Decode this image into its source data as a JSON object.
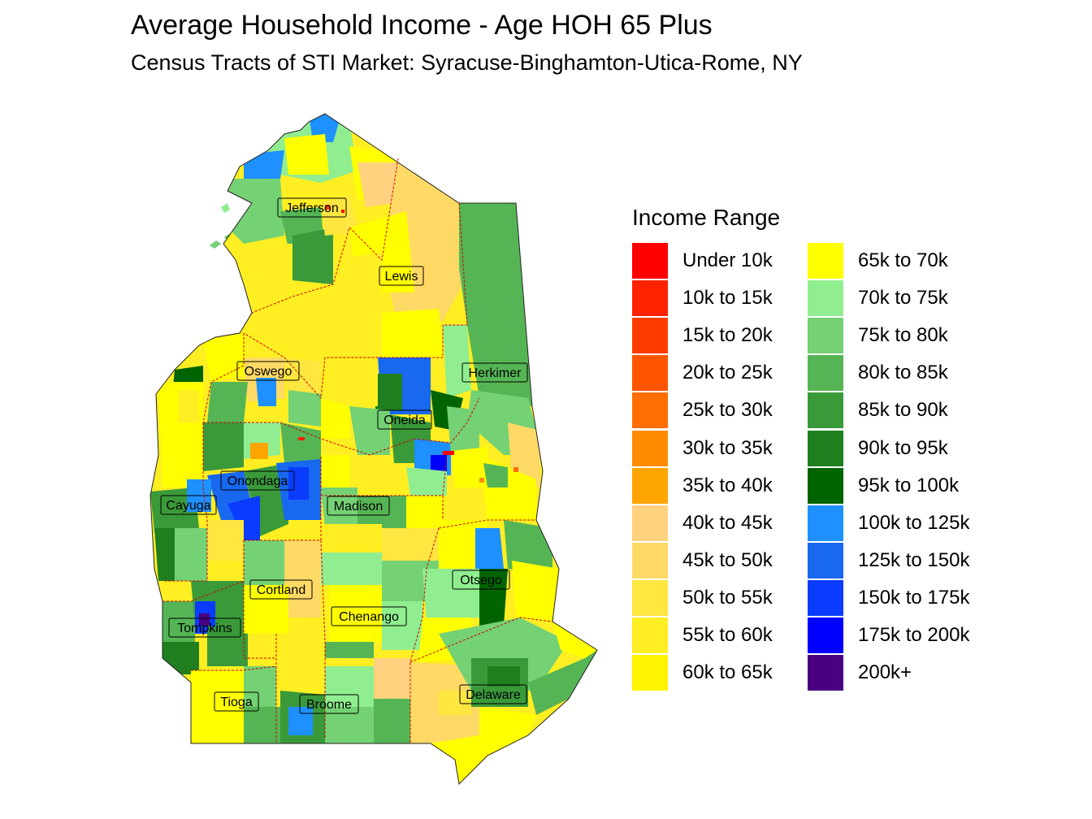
{
  "title": "Average Household Income - Age HOH 65 Plus",
  "subtitle": "Census Tracts of STI Market: Syracuse-Binghamton-Utica-Rome, NY",
  "legend": {
    "title": "Income Range",
    "items": [
      {
        "label": "Under 10k",
        "color": "#FF0000"
      },
      {
        "label": "10k to 15k",
        "color": "#FF2200"
      },
      {
        "label": "15k to 20k",
        "color": "#FF3C00"
      },
      {
        "label": "20k to 25k",
        "color": "#FF5500"
      },
      {
        "label": "25k to 30k",
        "color": "#FF6E00"
      },
      {
        "label": "30k to 35k",
        "color": "#FF8C00"
      },
      {
        "label": "35k to 40k",
        "color": "#FFA500"
      },
      {
        "label": "40k to 45k",
        "color": "#FFD280"
      },
      {
        "label": "45k to 50k",
        "color": "#FFD966"
      },
      {
        "label": "50k to 55k",
        "color": "#FFE640"
      },
      {
        "label": "55k to 60k",
        "color": "#FFEE22"
      },
      {
        "label": "60k to 65k",
        "color": "#FFF400"
      },
      {
        "label": "65k to 70k",
        "color": "#FFFF00"
      },
      {
        "label": "70k to 75k",
        "color": "#90EE90"
      },
      {
        "label": "75k to 80k",
        "color": "#74D174"
      },
      {
        "label": "80k to 85k",
        "color": "#55B555"
      },
      {
        "label": "85k to 90k",
        "color": "#3A9A3A"
      },
      {
        "label": "90k to 95k",
        "color": "#1F7F1F"
      },
      {
        "label": "95k to 100k",
        "color": "#006400"
      },
      {
        "label": "100k to 125k",
        "color": "#1E90FF"
      },
      {
        "label": "125k to 150k",
        "color": "#1868F0"
      },
      {
        "label": "150k to 175k",
        "color": "#0A3CFF"
      },
      {
        "label": "175k to 200k",
        "color": "#0000FF"
      },
      {
        "label": "200k+",
        "color": "#4B0082"
      }
    ]
  },
  "counties": [
    {
      "name": "Jefferson"
    },
    {
      "name": "Lewis"
    },
    {
      "name": "Oswego"
    },
    {
      "name": "Herkimer"
    },
    {
      "name": "Oneida"
    },
    {
      "name": "Onondaga"
    },
    {
      "name": "Cayuga"
    },
    {
      "name": "Madison"
    },
    {
      "name": "Otsego"
    },
    {
      "name": "Cortland"
    },
    {
      "name": "Chenango"
    },
    {
      "name": "Tompkins"
    },
    {
      "name": "Delaware"
    },
    {
      "name": "Tioga"
    },
    {
      "name": "Broome"
    }
  ]
}
